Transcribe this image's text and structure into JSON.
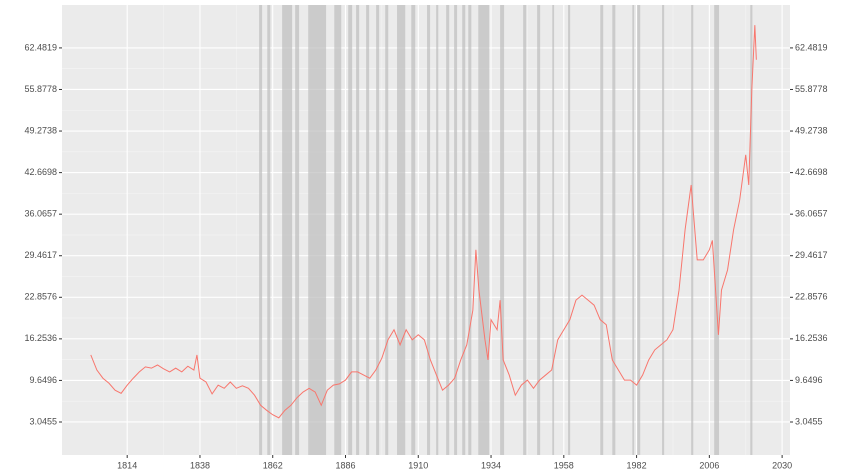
{
  "chart_data": {
    "type": "line",
    "x": [
      1802,
      1804,
      1806,
      1808,
      1810,
      1812,
      1814,
      1816,
      1818,
      1820,
      1822,
      1824,
      1826,
      1828,
      1830,
      1832,
      1834,
      1836,
      1837,
      1838,
      1840,
      1842,
      1844,
      1846,
      1848,
      1850,
      1852,
      1854,
      1856,
      1858,
      1860,
      1862,
      1864,
      1866,
      1868,
      1870,
      1872,
      1874,
      1876,
      1878,
      1880,
      1882,
      1884,
      1886,
      1888,
      1890,
      1892,
      1894,
      1896,
      1898,
      1900,
      1902,
      1904,
      1906,
      1908,
      1910,
      1912,
      1914,
      1916,
      1918,
      1920,
      1922,
      1924,
      1926,
      1928,
      1929,
      1930,
      1932,
      1933,
      1934,
      1936,
      1937,
      1938,
      1940,
      1942,
      1944,
      1946,
      1948,
      1950,
      1952,
      1954,
      1956,
      1958,
      1960,
      1962,
      1964,
      1966,
      1968,
      1970,
      1972,
      1974,
      1976,
      1978,
      1980,
      1982,
      1984,
      1986,
      1988,
      1990,
      1992,
      1994,
      1996,
      1998,
      2000,
      2002,
      2004,
      2006,
      2007,
      2009,
      2010,
      2012,
      2014,
      2016,
      2018,
      2019,
      2020,
      2021,
      2021.5
    ],
    "series": [
      {
        "color": "#f8766d",
        "values": [
          13.7,
          11.3,
          10.0,
          9.2,
          8.1,
          7.6,
          8.9,
          10.0,
          11.0,
          11.8,
          11.6,
          12.1,
          11.5,
          11.0,
          11.6,
          11.0,
          11.9,
          11.3,
          13.7,
          10.0,
          9.4,
          7.5,
          8.9,
          8.4,
          9.4,
          8.4,
          8.8,
          8.4,
          7.3,
          5.7,
          4.9,
          4.2,
          3.7,
          4.9,
          5.7,
          6.9,
          7.8,
          8.4,
          7.8,
          5.7,
          8.1,
          8.9,
          9.1,
          9.7,
          11.0,
          11.0,
          10.5,
          10.0,
          11.3,
          13.2,
          16.1,
          17.7,
          15.3,
          17.7,
          16.1,
          16.9,
          16.1,
          12.9,
          10.5,
          8.1,
          8.9,
          10.0,
          12.9,
          15.3,
          20.8,
          30.4,
          24.0,
          16.1,
          12.9,
          19.3,
          17.7,
          22.4,
          12.9,
          10.5,
          7.3,
          8.9,
          9.7,
          8.4,
          9.7,
          10.5,
          11.3,
          16.1,
          17.7,
          19.3,
          22.4,
          23.2,
          22.4,
          21.6,
          19.3,
          18.5,
          12.9,
          11.3,
          9.7,
          9.7,
          8.9,
          10.5,
          12.9,
          14.5,
          15.3,
          16.1,
          17.7,
          24.0,
          33.6,
          40.7,
          28.8,
          28.8,
          30.4,
          31.9,
          16.9,
          24.0,
          27.2,
          33.6,
          38.3,
          45.5,
          40.7,
          55.8,
          66.1,
          60.6
        ]
      }
    ],
    "shaded_periods": [
      [
        1857.5,
        1858.5
      ],
      [
        1860.2,
        1861.2
      ],
      [
        1865.1,
        1868.4
      ],
      [
        1869.4,
        1870.7
      ],
      [
        1873.7,
        1879.6
      ],
      [
        1882.3,
        1884.6
      ],
      [
        1886.9,
        1888.2
      ],
      [
        1889.5,
        1890.5
      ],
      [
        1892.8,
        1893.8
      ],
      [
        1896.1,
        1897.1
      ],
      [
        1899.1,
        1900.1
      ],
      [
        1903.0,
        1905.7
      ],
      [
        1907.7,
        1909.0
      ],
      [
        1912.9,
        1913.9
      ],
      [
        1915.9,
        1916.6
      ],
      [
        1919.2,
        1920.2
      ],
      [
        1921.8,
        1922.8
      ],
      [
        1924.5,
        1925.5
      ],
      [
        1926.5,
        1927.5
      ],
      [
        1929.8,
        1933.4
      ],
      [
        1937.0,
        1938.3
      ],
      [
        1944.6,
        1945.6
      ],
      [
        1949.2,
        1950.2
      ],
      [
        1954.2,
        1954.8
      ],
      [
        1959.4,
        1960.1
      ],
      [
        1970.0,
        1971.0
      ],
      [
        1974.0,
        1975.0
      ],
      [
        1980.6,
        1981.2
      ],
      [
        1982.2,
        1983.2
      ],
      [
        1990.4,
        1991.1
      ],
      [
        2000.0,
        2000.7
      ],
      [
        2007.6,
        2009.2
      ],
      [
        2019.5,
        2020.2
      ]
    ],
    "xlim": [
      1792.5,
      2032.6
    ],
    "xticks": [
      1814,
      1838,
      1862,
      1886,
      1910,
      1934,
      1958,
      1982,
      2006,
      2030
    ],
    "ylim": [
      -2.2,
      69.3
    ],
    "yticks": [
      3.0455,
      9.6496,
      16.2536,
      22.8576,
      29.4617,
      36.0657,
      42.6698,
      49.2738,
      55.8778,
      62.4819
    ],
    "grid": true
  }
}
